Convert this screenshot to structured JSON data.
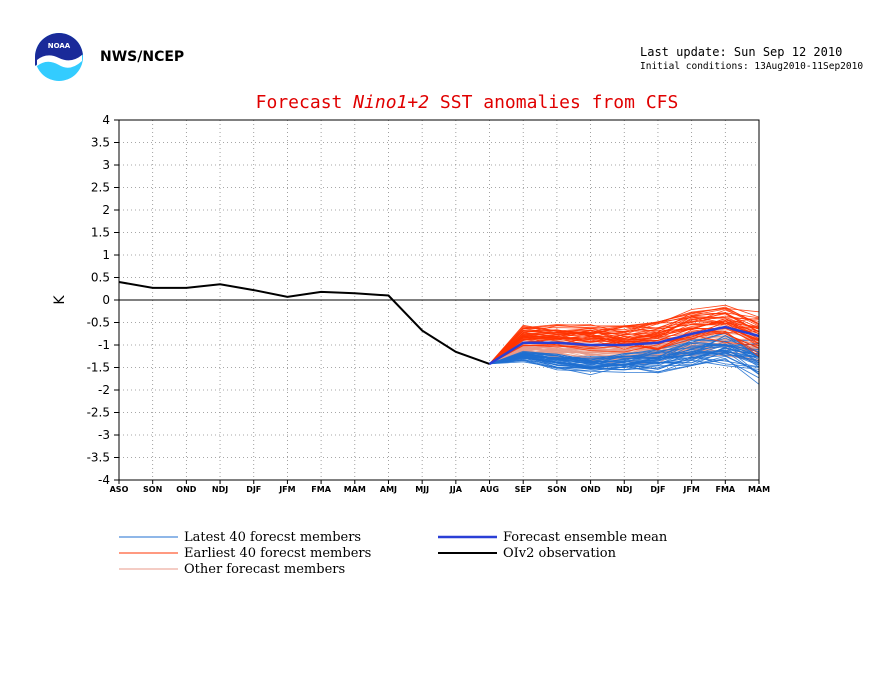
{
  "header": {
    "org_label": "NWS/NCEP",
    "last_update": "Last update: Sun Sep 12 2010",
    "initial_conditions": "Initial conditions: 13Aug2010-11Sep2010"
  },
  "logo": {
    "icon": "noaa-logo-icon",
    "text": "NOAA"
  },
  "colors": {
    "title": "#e00000",
    "latest": "#1f6fd0",
    "earliest": "#ff3300",
    "other": "#e89a8a",
    "mean": "#2a3fd6",
    "observation": "#000000"
  },
  "chart_data": {
    "type": "line",
    "title_prefix": "Forecast ",
    "title_region": "Nino1+2",
    "title_suffix": " SST anomalies from CFS",
    "ylabel": "K",
    "ylim": [
      -4,
      4
    ],
    "yticks": [
      4,
      3.5,
      3,
      2.5,
      2,
      1.5,
      1,
      0.5,
      0,
      -0.5,
      -1,
      -1.5,
      -2,
      -2.5,
      -3,
      -3.5,
      -4
    ],
    "categories": [
      "ASO",
      "SON",
      "OND",
      "NDJ",
      "DJF",
      "JFM",
      "FMA",
      "MAM",
      "AMJ",
      "MJJ",
      "JJA",
      "AUG",
      "SEP",
      "SON",
      "OND",
      "NDJ",
      "DJF",
      "JFM",
      "FMA",
      "MAM"
    ],
    "grid": true,
    "observation": {
      "name": "OIv2 observation",
      "values": [
        0.4,
        0.27,
        0.27,
        0.35,
        0.22,
        0.07,
        0.18,
        0.15,
        0.1,
        -0.68,
        -1.15,
        -1.42
      ]
    },
    "ensemble_mean": {
      "name": "Forecast ensemble mean",
      "values": [
        -1.42,
        -0.95,
        -0.95,
        -1.0,
        -1.0,
        -0.95,
        -0.75,
        -0.6,
        -0.8
      ]
    },
    "member_groups": [
      {
        "name": "Latest 40 forecst members",
        "count": 40,
        "center": [
          -1.42,
          -1.25,
          -1.35,
          -1.45,
          -1.4,
          -1.35,
          -1.2,
          -1.1,
          -1.35
        ],
        "spread": [
          0,
          0.12,
          0.18,
          0.2,
          0.22,
          0.25,
          0.32,
          0.4,
          0.5
        ]
      },
      {
        "name": "Earliest 40 forecst members",
        "count": 40,
        "center": [
          -1.42,
          -0.78,
          -0.8,
          -0.82,
          -0.85,
          -0.8,
          -0.6,
          -0.5,
          -0.75
        ],
        "spread": [
          0,
          0.22,
          0.25,
          0.28,
          0.3,
          0.32,
          0.38,
          0.42,
          0.5
        ]
      },
      {
        "name": "Other forecast members",
        "count": 40,
        "center": [
          -1.42,
          -1.1,
          -1.1,
          -1.15,
          -1.15,
          -1.1,
          -1.0,
          -0.9,
          -1.05
        ],
        "spread": [
          0,
          0.18,
          0.22,
          0.24,
          0.26,
          0.3,
          0.35,
          0.4,
          0.48
        ]
      }
    ]
  },
  "legend": {
    "latest": "Latest 40 forecst members",
    "earliest": "Earliest 40 forecst members",
    "other": "Other forecast members",
    "mean": "Forecast ensemble mean",
    "observation": "OIv2 observation"
  }
}
